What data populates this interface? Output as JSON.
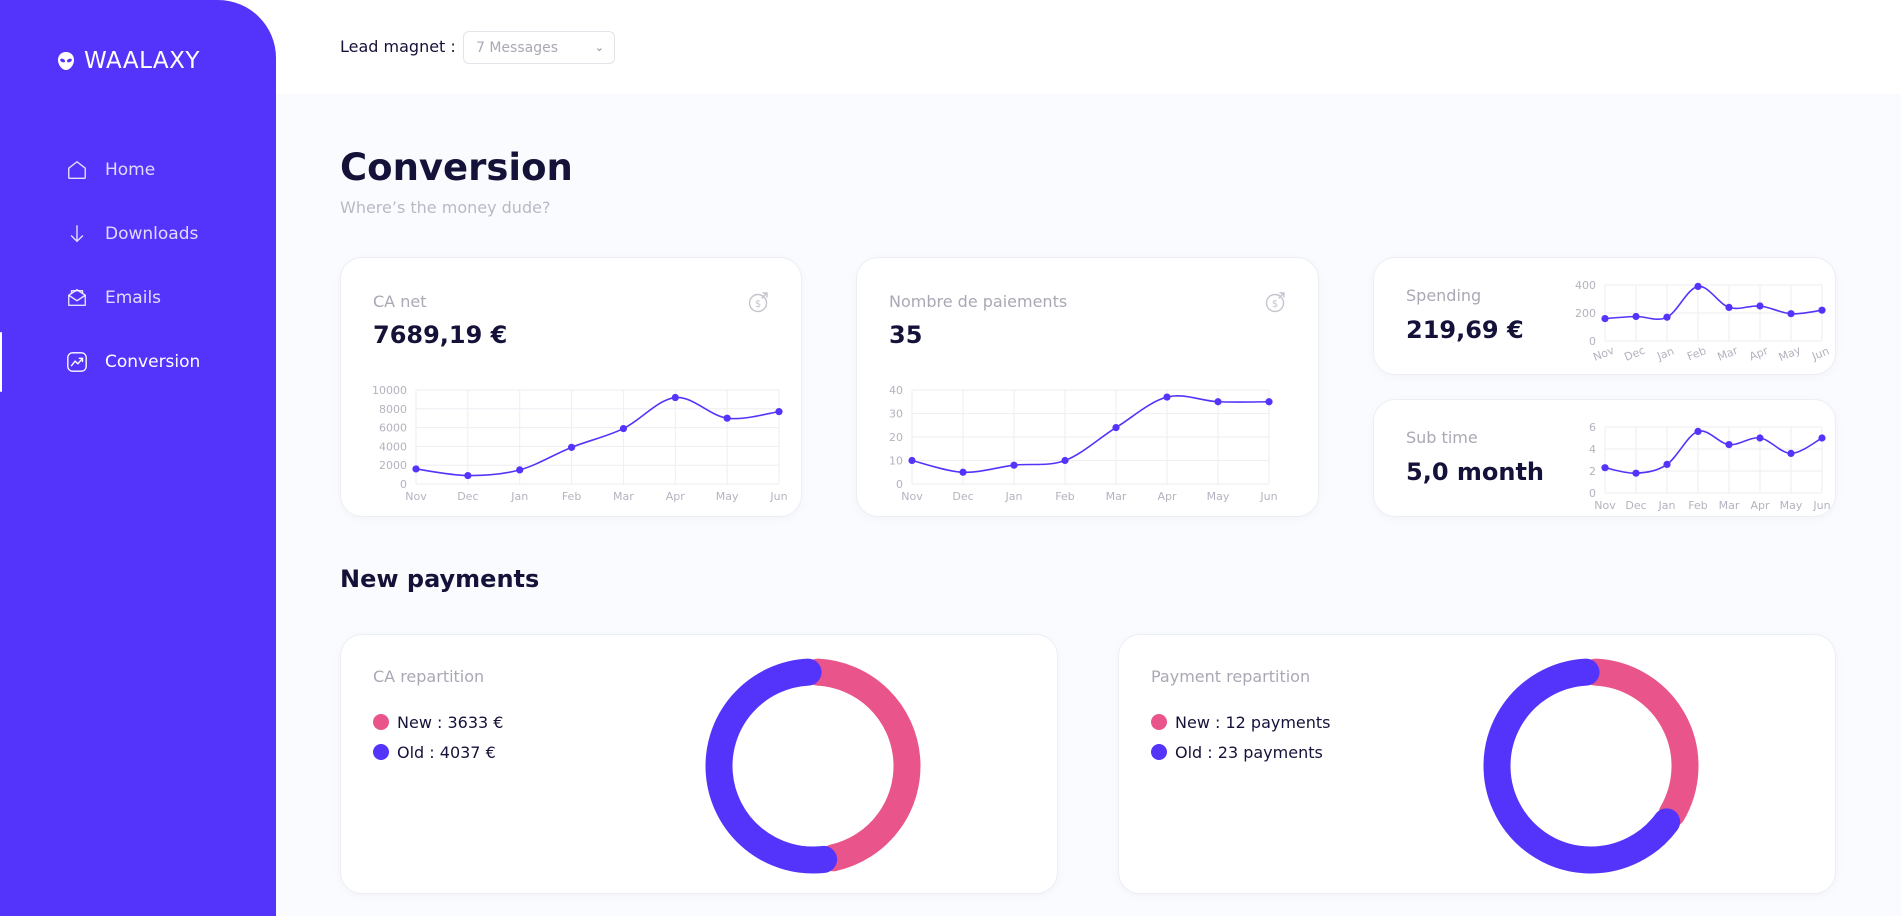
{
  "app": {
    "name": "WAALAXY"
  },
  "colors": {
    "primary": "#5434fb",
    "pink": "#e9558a",
    "dark": "#15123a"
  },
  "sidebar": {
    "items": [
      {
        "label": "Home",
        "icon": "home-icon",
        "active": false
      },
      {
        "label": "Downloads",
        "icon": "download-icon",
        "active": false
      },
      {
        "label": "Emails",
        "icon": "mail-icon",
        "active": false
      },
      {
        "label": "Conversion",
        "icon": "chart-icon",
        "active": true
      }
    ]
  },
  "topbar": {
    "lead_label": "Lead magnet :",
    "lead_value": "7 Messages"
  },
  "page": {
    "title": "Conversion",
    "subtitle": "Where’s the money dude?"
  },
  "cards": {
    "ca_net": {
      "label": "CA net",
      "value": "7689,19 €"
    },
    "paiements": {
      "label": "Nombre de paiements",
      "value": "35"
    },
    "spending": {
      "label": "Spending",
      "value": "219,69 €"
    },
    "subtime": {
      "label": "Sub time",
      "value": "5,0 month"
    }
  },
  "section": {
    "new_payments": "New payments"
  },
  "repartition": {
    "ca": {
      "label": "CA repartition",
      "new": "New : 3633 €",
      "old": "Old : 4037 €"
    },
    "payment": {
      "label": "Payment repartition",
      "new": "New : 12 payments",
      "old": "Old : 23 payments"
    }
  },
  "chart_data": [
    {
      "id": "ca_net",
      "type": "line",
      "categories": [
        "Nov",
        "Dec",
        "Jan",
        "Feb",
        "Mar",
        "Apr",
        "May",
        "Jun"
      ],
      "series": [
        {
          "values": [
            1600,
            900,
            1500,
            3900,
            5900,
            9200,
            7000,
            7700
          ]
        }
      ],
      "yticks": [
        0,
        2000,
        4000,
        6000,
        8000,
        10000
      ],
      "ylim": [
        0,
        10000
      ],
      "grid": true
    },
    {
      "id": "paiements",
      "type": "line",
      "categories": [
        "Nov",
        "Dec",
        "Jan",
        "Feb",
        "Mar",
        "Apr",
        "May",
        "Jun"
      ],
      "series": [
        {
          "values": [
            10,
            5,
            8,
            10,
            24,
            37,
            35,
            35
          ]
        }
      ],
      "yticks": [
        0,
        10,
        20,
        30,
        40
      ],
      "ylim": [
        0,
        40
      ],
      "grid": true
    },
    {
      "id": "spending",
      "type": "line",
      "categories": [
        "Nov",
        "Dec",
        "Jan",
        "Feb",
        "Mar",
        "Apr",
        "May",
        "Jun"
      ],
      "series": [
        {
          "values": [
            160,
            175,
            170,
            390,
            240,
            250,
            195,
            220
          ]
        }
      ],
      "yticks": [
        0,
        200,
        400
      ],
      "ylim": [
        0,
        400
      ],
      "grid": true
    },
    {
      "id": "subtime",
      "type": "line",
      "categories": [
        "Nov",
        "Dec",
        "Jan",
        "Feb",
        "Mar",
        "Apr",
        "May",
        "Jun"
      ],
      "series": [
        {
          "values": [
            2.3,
            1.8,
            2.6,
            5.6,
            4.4,
            5.0,
            3.6,
            5.0
          ]
        }
      ],
      "yticks": [
        0,
        2,
        4,
        6
      ],
      "ylim": [
        0,
        6
      ],
      "grid": true
    },
    {
      "id": "ca_repartition",
      "type": "pie",
      "labels": [
        "New",
        "Old"
      ],
      "values": [
        3633,
        4037
      ],
      "colors": [
        "#e9558a",
        "#5434fb"
      ]
    },
    {
      "id": "payment_repartition",
      "type": "pie",
      "labels": [
        "New",
        "Old"
      ],
      "values": [
        12,
        23
      ],
      "colors": [
        "#e9558a",
        "#5434fb"
      ]
    }
  ]
}
